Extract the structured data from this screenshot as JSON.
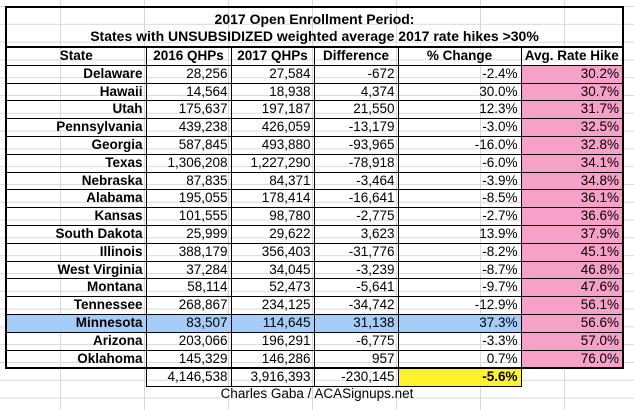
{
  "title_line1": "2017 Open Enrollment Period:",
  "title_line2": "States with UNSUBSIDIZED weighted average 2017 rate hikes >30%",
  "columns": [
    "State",
    "2016 QHPs",
    "2017 QHPs",
    "Difference",
    "% Change",
    "Avg. Rate Hike"
  ],
  "rows": [
    [
      "Delaware",
      "28,256",
      "27,584",
      "-672",
      "-2.4%",
      "30.2%"
    ],
    [
      "Hawaii",
      "14,564",
      "18,938",
      "4,374",
      "30.0%",
      "30.7%"
    ],
    [
      "Utah",
      "175,637",
      "197,187",
      "21,550",
      "12.3%",
      "31.7%"
    ],
    [
      "Pennsylvania",
      "439,238",
      "426,059",
      "-13,179",
      "-3.0%",
      "32.5%"
    ],
    [
      "Georgia",
      "587,845",
      "493,880",
      "-93,965",
      "-16.0%",
      "32.8%"
    ],
    [
      "Texas",
      "1,306,208",
      "1,227,290",
      "-78,918",
      "-6.0%",
      "34.1%"
    ],
    [
      "Nebraska",
      "87,835",
      "84,371",
      "-3,464",
      "-3.9%",
      "34.8%"
    ],
    [
      "Alabama",
      "195,055",
      "178,414",
      "-16,641",
      "-8.5%",
      "36.1%"
    ],
    [
      "Kansas",
      "101,555",
      "98,780",
      "-2,775",
      "-2.7%",
      "36.6%"
    ],
    [
      "South Dakota",
      "25,999",
      "29,622",
      "3,623",
      "13.9%",
      "37.9%"
    ],
    [
      "Illinois",
      "388,179",
      "356,403",
      "-31,776",
      "-8.2%",
      "45.1%"
    ],
    [
      "West Virginia",
      "37,284",
      "34,045",
      "-3,239",
      "-8.7%",
      "46.8%"
    ],
    [
      "Montana",
      "58,114",
      "52,473",
      "-5,641",
      "-9.7%",
      "47.6%"
    ],
    [
      "Tennessee",
      "268,867",
      "234,125",
      "-34,742",
      "-12.9%",
      "56.1%"
    ],
    [
      "Minnesota",
      "83,507",
      "114,645",
      "31,138",
      "37.3%",
      "56.6%"
    ],
    [
      "Arizona",
      "203,066",
      "196,291",
      "-6,775",
      "-3.3%",
      "57.0%"
    ],
    [
      "Oklahoma",
      "145,329",
      "146,286",
      "957",
      "0.7%",
      "76.0%"
    ]
  ],
  "highlighted_row": "Minnesota",
  "totals": [
    "4,146,538",
    "3,916,393",
    "-230,145",
    "-5.6%"
  ],
  "footer": "Charles Gaba / ACASignups.net",
  "colors": {
    "rate_hike_fill": "#f7a1c9",
    "highlight_row": "#a6cdf7",
    "total_pct_fill": "#fff12a"
  }
}
